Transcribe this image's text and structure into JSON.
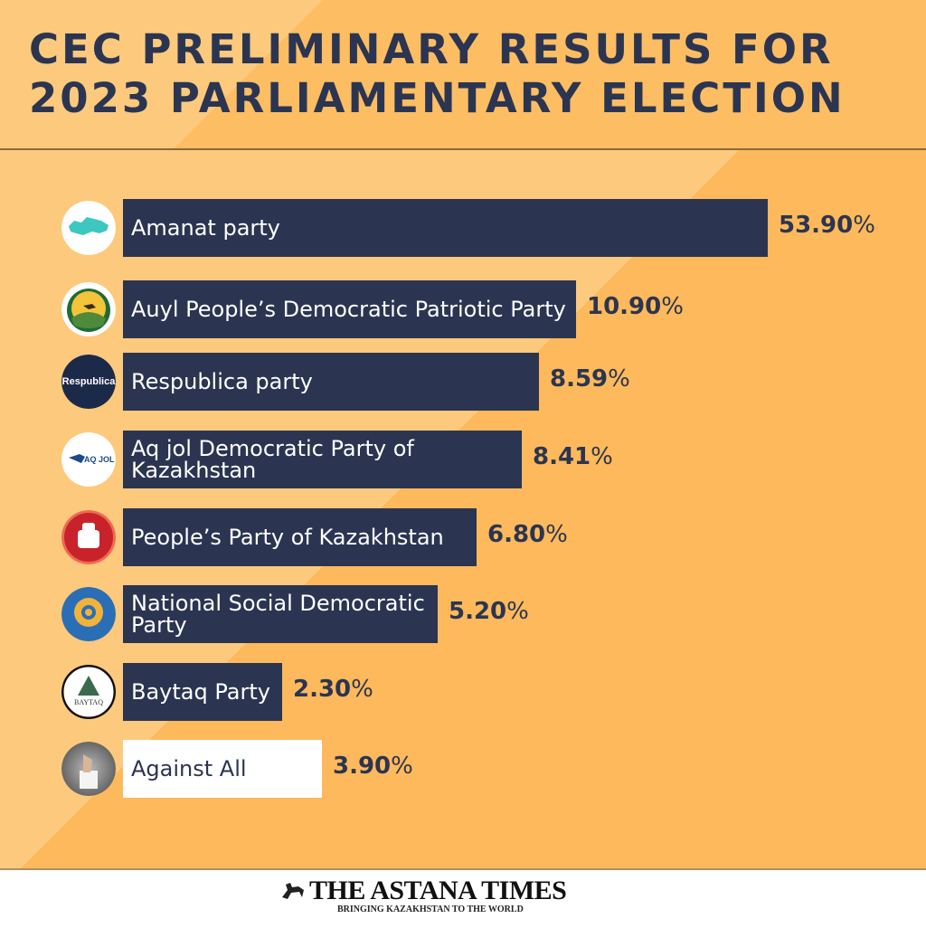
{
  "chart_data": {
    "type": "bar",
    "orientation": "horizontal",
    "title": "CEC PRELIMINARY RESULTS FOR 2023 PARLIAMENTARY ELECTION",
    "categories": [
      "Amanat party",
      "Auyl People’s Democratic Patriotic Party",
      "Respublica party",
      "Aq jol Democratic Party of Kazakhstan",
      "People’s Party of Kazakhstan",
      "National Social Democratic Party",
      "Baytaq Party",
      "Against All"
    ],
    "values": [
      53.9,
      10.9,
      8.59,
      8.41,
      6.8,
      5.2,
      2.3,
      3.9
    ],
    "value_labels": [
      "53.90",
      "10.90",
      "8.59",
      "8.41",
      "6.80",
      "5.20",
      "2.30",
      "3.90"
    ],
    "unit": "%",
    "logos": [
      "kazakhstan-map-logo",
      "auyl-horse-field-logo",
      "respublica-logo",
      "aq-jol-logo",
      "peoples-party-fists-logo",
      "nsdp-flower-logo",
      "baytaq-tree-logo",
      "ballot-hand-photo"
    ],
    "logo_text": {
      "respublica": "Respublica",
      "aq_jol": "AQ JOL",
      "baytaq": "BAYTAQ"
    },
    "colors": {
      "bar": "#2b3551",
      "against_bar": "#ffffff",
      "text": "#2b3551",
      "background_light": "#fdc97c",
      "background_dark": "#fdb95b"
    }
  },
  "footer": {
    "brand": "THE ASTANA TIMES",
    "tagline": "BRINGING KAZAKHSTAN TO THE WORLD"
  }
}
